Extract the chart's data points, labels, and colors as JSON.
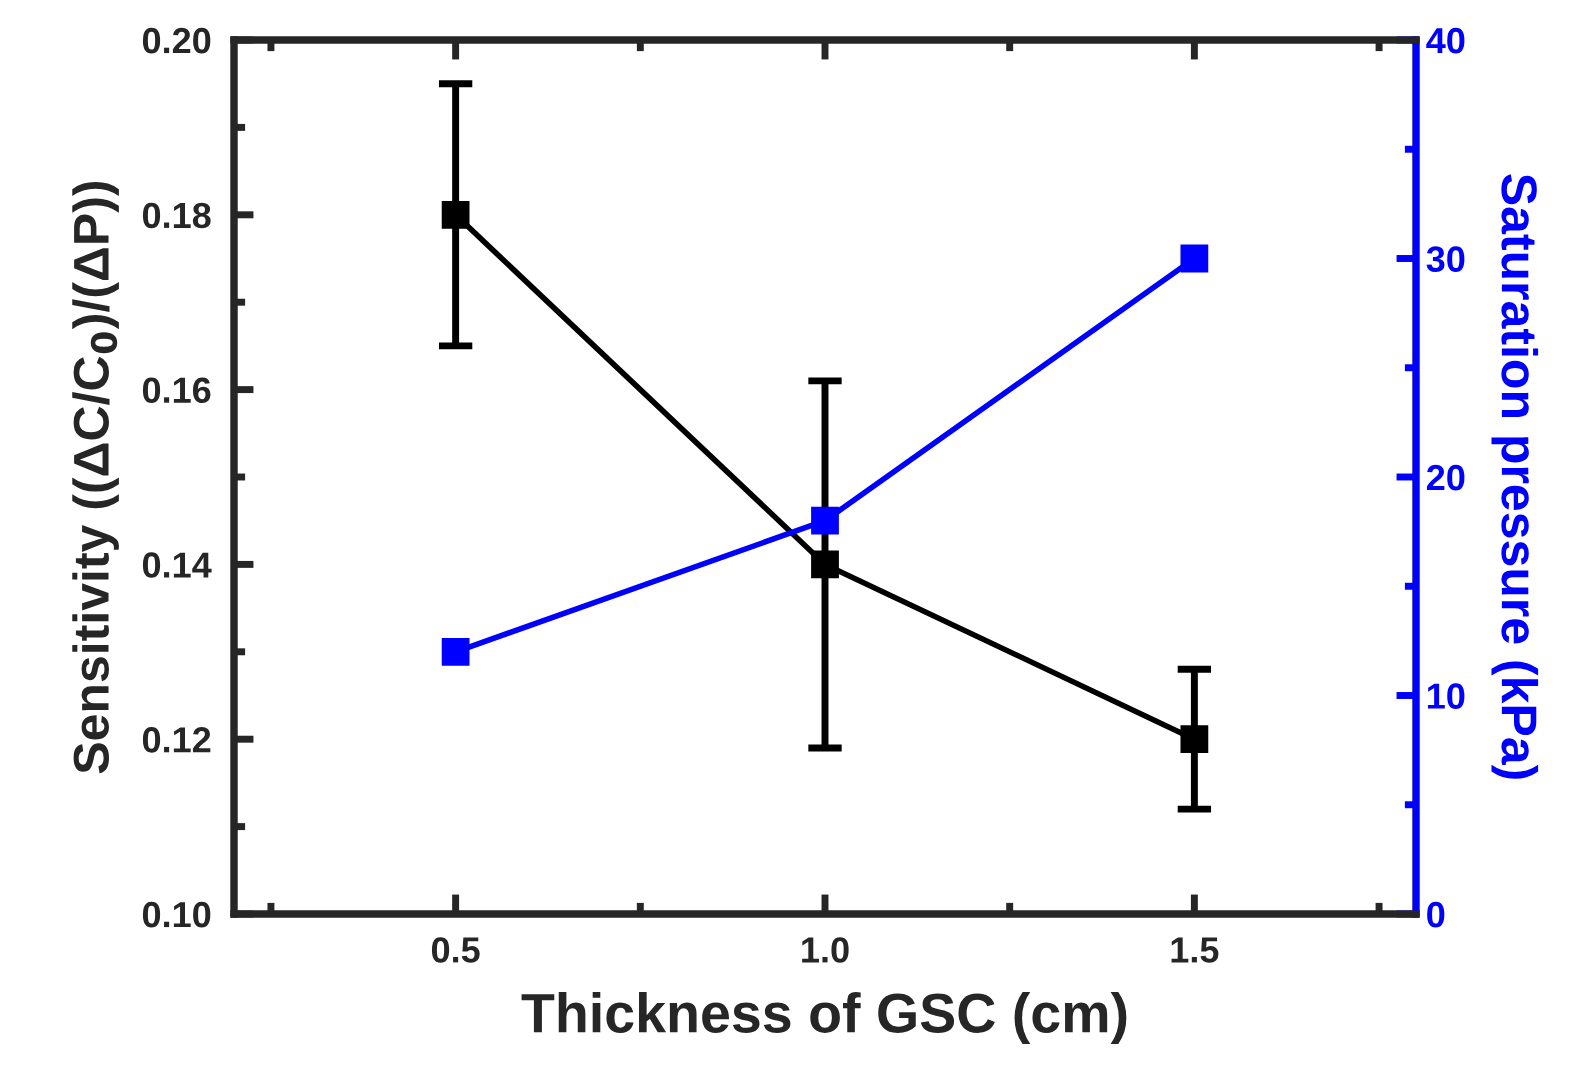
{
  "chart_data": {
    "type": "line",
    "x": [
      0.5,
      1.0,
      1.5
    ],
    "xlabel": "Thickness of GSC (cm)",
    "ylabel": "Sensitivity ((ΔC/C$_{0}$)/(ΔP))",
    "y2label": "Saturation pressure (kPa)",
    "series": [
      {
        "color": "#000000",
        "values": [
          0.18,
          0.14,
          0.12
        ],
        "errors": [
          [
            0.165,
            0.195
          ],
          [
            0.119,
            0.161
          ],
          [
            0.112,
            0.128
          ]
        ]
      },
      {
        "color": "#0000ff",
        "values": [
          12,
          18,
          30
        ],
        "axis": "y2"
      }
    ],
    "xlim": [
      0.2,
      1.8
    ],
    "xticks": [
      {
        "value": 0.5,
        "label": "0.5"
      },
      {
        "value": 1.0,
        "label": "1.0"
      },
      {
        "value": 1.5,
        "label": "1.5"
      }
    ],
    "ylim": [
      0.1,
      0.2
    ],
    "yticks": [
      {
        "value": 0.1,
        "label": "0.10"
      },
      {
        "value": 0.12,
        "label": "0.12"
      },
      {
        "value": 0.14,
        "label": "0.14"
      },
      {
        "value": 0.16,
        "label": "0.16"
      },
      {
        "value": 0.18,
        "label": "0.18"
      },
      {
        "value": 0.2,
        "label": "0.20"
      }
    ],
    "y2lim": [
      0,
      40
    ],
    "y2ticks": [
      0,
      10,
      20,
      30,
      40
    ],
    "marker": "square",
    "line_style": "solid",
    "grid": false
  }
}
